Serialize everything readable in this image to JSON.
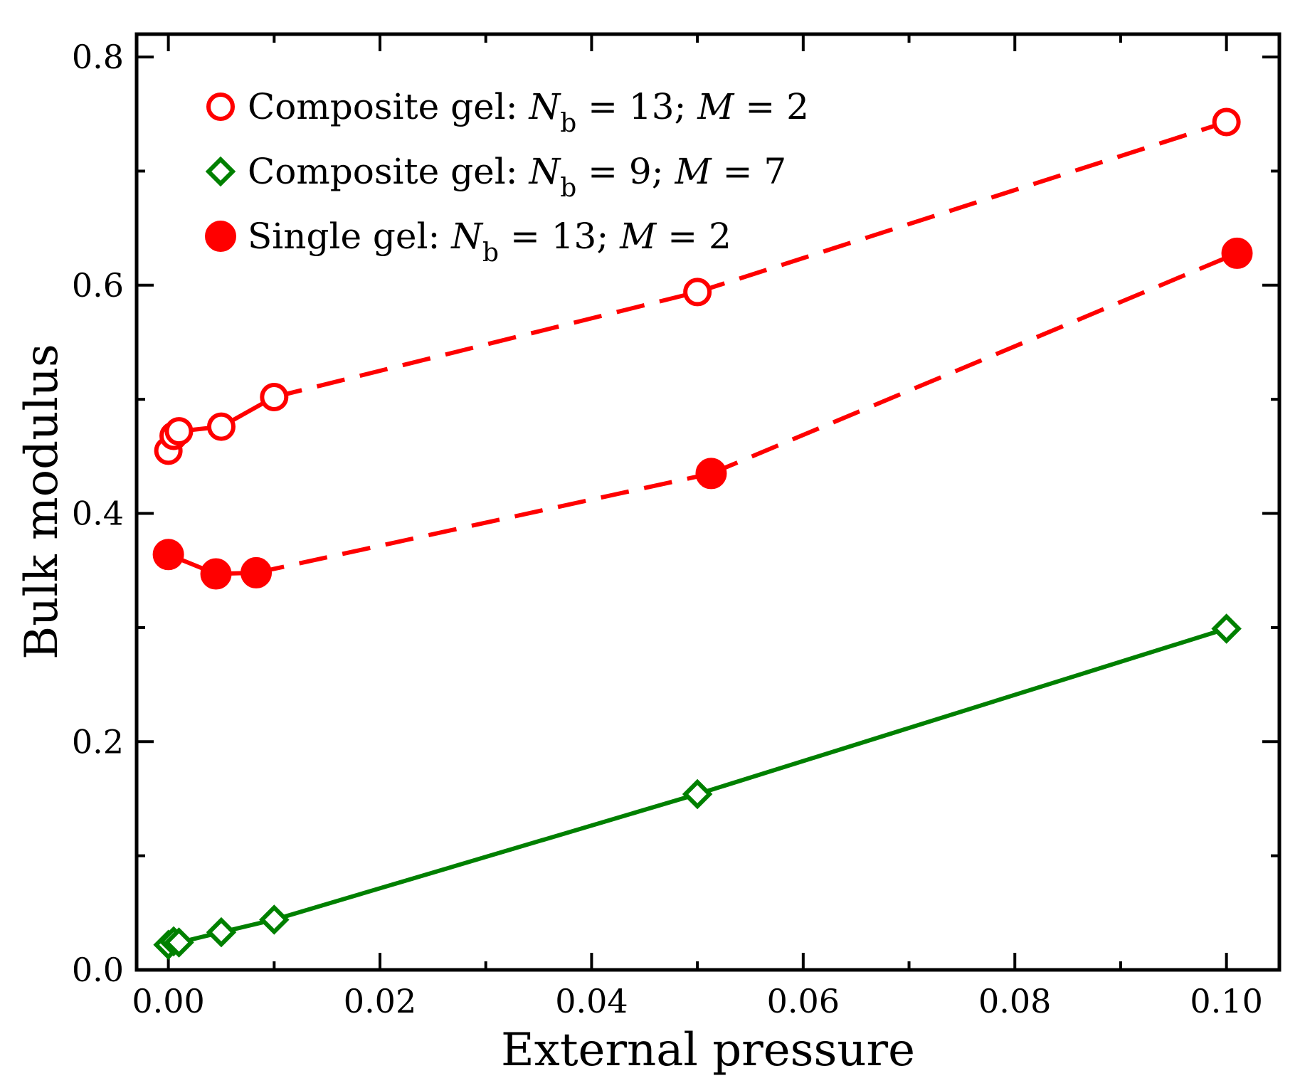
{
  "chart_data": {
    "type": "line",
    "title": "",
    "xlabel": "External pressure",
    "ylabel": "Bulk modulus",
    "xlim": [
      -0.003,
      0.105
    ],
    "ylim": [
      0.0,
      0.82
    ],
    "x_ticks": [
      0.0,
      0.02,
      0.04,
      0.06,
      0.08,
      0.1
    ],
    "x_tick_labels": [
      "0.00",
      "0.02",
      "0.04",
      "0.06",
      "0.08",
      "0.10"
    ],
    "y_ticks": [
      0.0,
      0.2,
      0.4,
      0.6,
      0.8
    ],
    "y_tick_labels": [
      "0.0",
      "0.2",
      "0.4",
      "0.6",
      "0.8"
    ],
    "legend_position": "top-left",
    "series": [
      {
        "key": "composite-nb13-m2",
        "name": "Composite gel: N_b = 13; M = 2",
        "legend": {
          "prefix": "Composite gel: ",
          "var1": "N",
          "sub": "b",
          "mid": " = 13; ",
          "var2": "M",
          "suffix": " = 2"
        },
        "color": "#ff0000",
        "marker": "circle-open",
        "x": [
          0.0,
          0.0005,
          0.001,
          0.005,
          0.01,
          0.05,
          0.1
        ],
        "y": [
          0.455,
          0.468,
          0.472,
          0.476,
          0.502,
          0.594,
          0.743
        ],
        "solid_until_index": 4
      },
      {
        "key": "composite-nb9-m7",
        "name": "Composite gel: N_b = 9; M = 7",
        "legend": {
          "prefix": "Composite gel: ",
          "var1": "N",
          "sub": "b",
          "mid": " = 9; ",
          "var2": "M",
          "suffix": " = 7"
        },
        "color": "#008000",
        "marker": "diamond-open",
        "x": [
          0.0,
          0.0005,
          0.001,
          0.005,
          0.01,
          0.05,
          0.1
        ],
        "y": [
          0.022,
          0.025,
          0.024,
          0.033,
          0.044,
          0.154,
          0.299
        ],
        "solid_until_index": 6
      },
      {
        "key": "single-nb13-m2",
        "name": "Single gel: N_b = 13; M = 2",
        "legend": {
          "prefix": "Single gel: ",
          "var1": "N",
          "sub": "b",
          "mid": " = 13; ",
          "var2": "M",
          "suffix": " = 2"
        },
        "color": "#ff0000",
        "marker": "circle-filled",
        "x": [
          0.0,
          0.0045,
          0.0083,
          0.0513,
          0.101
        ],
        "y": [
          0.364,
          0.347,
          0.348,
          0.435,
          0.628
        ],
        "solid_until_index": 2
      }
    ]
  }
}
